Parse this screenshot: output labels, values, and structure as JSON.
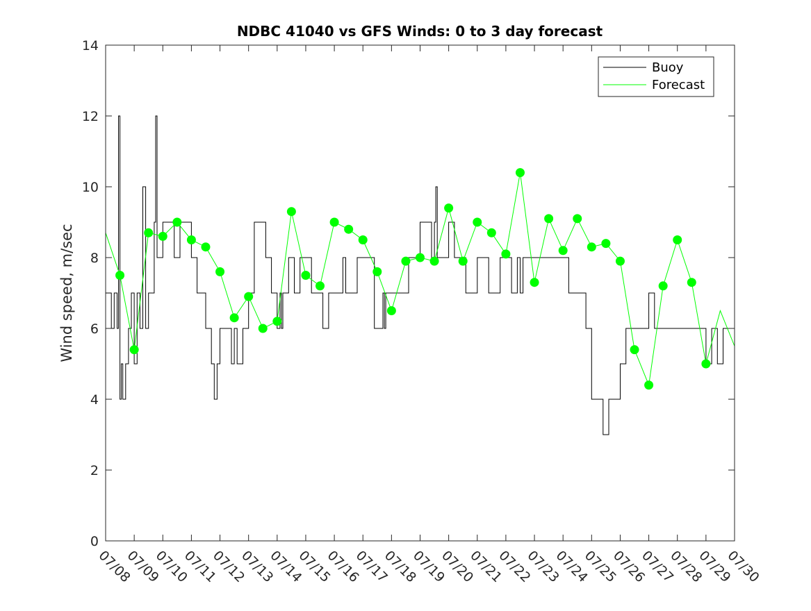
{
  "chart_data": {
    "type": "line",
    "title": "NDBC 41040 vs GFS Winds: 0 to 3 day forecast",
    "xlabel": "",
    "ylabel": "Wind speed, m/sec",
    "ylim": [
      0,
      14
    ],
    "yticks": [
      0,
      2,
      4,
      6,
      8,
      10,
      12,
      14
    ],
    "xlim": [
      0,
      22
    ],
    "xticks": [
      "07/08",
      "07/09",
      "07/10",
      "07/11",
      "07/12",
      "07/13",
      "07/14",
      "07/15",
      "07/16",
      "07/17",
      "07/18",
      "07/19",
      "07/20",
      "07/21",
      "07/22",
      "07/23",
      "07/24",
      "07/25",
      "07/26",
      "07/27",
      "07/28",
      "07/29",
      "07/30"
    ],
    "grid": false,
    "legend": {
      "position": "top-right",
      "entries": [
        "Buoy",
        "Forecast"
      ]
    },
    "colors": {
      "buoy": "#000000",
      "forecast": "#00ff00",
      "axis": "#262626"
    },
    "series": [
      {
        "name": "Buoy",
        "x": [
          0,
          0.2,
          0.3,
          0.4,
          0.45,
          0.5,
          0.55,
          0.6,
          0.7,
          0.8,
          0.9,
          1.0,
          1.1,
          1.2,
          1.3,
          1.4,
          1.5,
          1.7,
          1.75,
          1.8,
          2.0,
          2.2,
          2.4,
          2.6,
          2.8,
          3.0,
          3.2,
          3.4,
          3.5,
          3.6,
          3.7,
          3.8,
          3.9,
          4.0,
          4.2,
          4.4,
          4.5,
          4.6,
          4.8,
          5.0,
          5.2,
          5.4,
          5.6,
          5.8,
          6.0,
          6.1,
          6.15,
          6.2,
          6.4,
          6.6,
          6.8,
          7.0,
          7.2,
          7.4,
          7.6,
          7.8,
          8.0,
          8.2,
          8.3,
          8.4,
          8.6,
          8.8,
          9.0,
          9.2,
          9.4,
          9.6,
          9.7,
          9.75,
          9.8,
          10.0,
          10.2,
          10.4,
          10.6,
          10.8,
          11.0,
          11.2,
          11.4,
          11.5,
          11.55,
          11.6,
          11.8,
          12.0,
          12.2,
          12.4,
          12.6,
          12.8,
          13.0,
          13.2,
          13.4,
          13.5,
          13.6,
          13.8,
          14.0,
          14.2,
          14.4,
          14.5,
          14.6,
          14.8,
          15.0,
          15.2,
          15.4,
          15.6,
          15.8,
          16.0,
          16.2,
          16.4,
          16.6,
          16.8,
          17.0,
          17.2,
          17.4,
          17.6,
          17.8,
          18.0,
          18.2,
          18.4,
          18.6,
          18.8,
          19.0,
          19.2,
          19.4,
          19.6,
          19.8,
          20.0,
          20.2,
          20.4,
          20.6,
          20.8,
          21.0,
          21.2,
          21.4,
          21.6,
          21.8,
          22.0
        ],
        "y": [
          7,
          6,
          7,
          6,
          12,
          4,
          5,
          4,
          5,
          6,
          7,
          5,
          7,
          6,
          10,
          6,
          7,
          9,
          12,
          8,
          9,
          9,
          8,
          9,
          9,
          8,
          7,
          7,
          6,
          6,
          5,
          4,
          5,
          6,
          6,
          5,
          6,
          5,
          6,
          7,
          9,
          9,
          8,
          7,
          6,
          7,
          6,
          7,
          8,
          7,
          8,
          8,
          7,
          7,
          6,
          7,
          7,
          7,
          8,
          7,
          7,
          8,
          8,
          8,
          6,
          6,
          7,
          6,
          7,
          7,
          7,
          7,
          8,
          8,
          9,
          9,
          8,
          9,
          10,
          8,
          8,
          9,
          8,
          8,
          7,
          7,
          8,
          8,
          7,
          7,
          7,
          8,
          8,
          7,
          8,
          7,
          8,
          8,
          8,
          8,
          8,
          8,
          8,
          8,
          7,
          7,
          7,
          6,
          4,
          4,
          3,
          4,
          4,
          5,
          6,
          6,
          6,
          6,
          7,
          6,
          6,
          6,
          6,
          6,
          6,
          6,
          6,
          6,
          5,
          6,
          5,
          6,
          6,
          6
        ]
      },
      {
        "name": "Forecast",
        "x": [
          0,
          0.5,
          1.0,
          1.5,
          2.0,
          2.5,
          3.0,
          3.5,
          4.0,
          4.5,
          5.0,
          5.5,
          6.0,
          6.5,
          7.0,
          7.5,
          8.0,
          8.5,
          9.0,
          9.5,
          10.0,
          10.5,
          11.0,
          11.5,
          12.0,
          12.5,
          13.0,
          13.5,
          14.0,
          14.5,
          15.0,
          15.5,
          16.0,
          16.5,
          17.0,
          17.5,
          18.0,
          18.5,
          19.0,
          19.5,
          20.0,
          20.5,
          21.0,
          21.5,
          22.0
        ],
        "y": [
          8.7,
          7.5,
          5.4,
          8.7,
          8.6,
          9.0,
          8.5,
          8.3,
          7.6,
          6.3,
          6.9,
          6.0,
          6.2,
          9.3,
          7.5,
          7.2,
          9.0,
          8.8,
          8.5,
          7.6,
          6.5,
          7.9,
          8.0,
          7.9,
          9.4,
          7.9,
          9.0,
          8.7,
          8.1,
          10.4,
          7.3,
          9.1,
          8.2,
          9.1,
          8.3,
          8.4,
          7.9,
          5.4,
          4.4,
          7.2,
          8.5,
          7.3,
          5.0,
          6.5,
          5.5
        ]
      }
    ],
    "markers": {
      "name": "Forecast",
      "x": [
        0.5,
        1.0,
        1.5,
        2.0,
        2.5,
        3.0,
        3.5,
        4.0,
        4.5,
        5.0,
        5.5,
        6.0,
        6.5,
        7.0,
        7.5,
        8.0,
        8.5,
        9.0,
        9.5,
        10.0,
        10.5,
        11.0,
        11.5,
        12.0,
        12.5,
        13.0,
        13.5,
        14.0,
        14.5,
        15.0,
        15.5,
        16.0,
        16.5,
        17.0,
        17.5,
        18.0,
        18.5,
        19.0,
        19.5,
        20.0,
        20.5,
        21.0
      ],
      "y": [
        7.5,
        5.4,
        8.7,
        8.6,
        9.0,
        8.5,
        8.3,
        7.6,
        6.3,
        6.9,
        6.0,
        6.2,
        9.3,
        7.5,
        7.2,
        9.0,
        8.8,
        8.5,
        7.6,
        6.5,
        7.9,
        8.0,
        7.9,
        9.4,
        7.9,
        9.0,
        8.7,
        8.1,
        10.4,
        7.3,
        9.1,
        8.2,
        9.1,
        8.3,
        8.4,
        7.9,
        5.4,
        4.4,
        7.2,
        8.5,
        7.3,
        5.0
      ]
    }
  }
}
